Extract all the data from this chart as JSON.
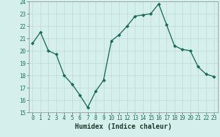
{
  "title": "",
  "xlabel": "Humidex (Indice chaleur)",
  "ylabel": "",
  "x": [
    0,
    1,
    2,
    3,
    4,
    5,
    6,
    7,
    8,
    9,
    10,
    11,
    12,
    13,
    14,
    15,
    16,
    17,
    18,
    19,
    20,
    21,
    22,
    23
  ],
  "y": [
    20.6,
    21.5,
    20.0,
    19.7,
    18.0,
    17.3,
    16.4,
    15.4,
    16.7,
    17.6,
    20.8,
    21.3,
    22.0,
    22.8,
    22.9,
    23.0,
    23.8,
    22.1,
    20.4,
    20.1,
    20.0,
    18.7,
    18.1,
    17.9
  ],
  "line_color": "#1a6b5a",
  "marker": "D",
  "marker_size": 2.2,
  "background_color": "#d4efec",
  "grid_color": "#c0d8d4",
  "ylim": [
    15,
    24
  ],
  "yticks": [
    15,
    16,
    17,
    18,
    19,
    20,
    21,
    22,
    23,
    24
  ],
  "xticks": [
    0,
    1,
    2,
    3,
    4,
    5,
    6,
    7,
    8,
    9,
    10,
    11,
    12,
    13,
    14,
    15,
    16,
    17,
    18,
    19,
    20,
    21,
    22,
    23
  ],
  "tick_fontsize": 5.5,
  "xlabel_fontsize": 7,
  "line_width": 1.0,
  "tick_color": "#1a6b5a",
  "label_color": "#1a3a2a"
}
